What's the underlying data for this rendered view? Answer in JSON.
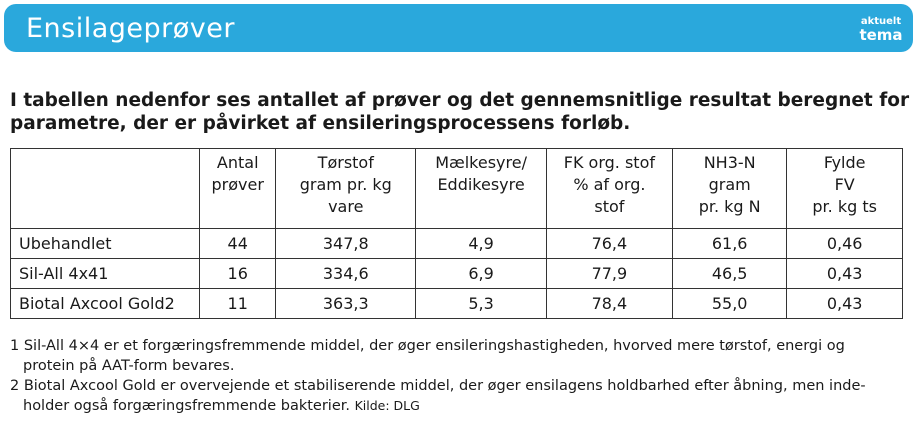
{
  "header": {
    "title": "Ensilageprøver",
    "badge_line1": "aktuelt",
    "badge_line2": "tema"
  },
  "intro": {
    "line1": "I tabellen nedenfor ses antallet af prøver og det gennemsnitlige resultat beregnet for",
    "line2": "parametre, der er påvirket af ensileringsprocessens forløb."
  },
  "table": {
    "columns": [
      {
        "lines": [
          ""
        ]
      },
      {
        "lines": [
          "Antal",
          "prøver"
        ]
      },
      {
        "lines": [
          "Tørstof",
          "gram pr. kg",
          "vare"
        ]
      },
      {
        "lines": [
          "Mælkesyre/",
          "Eddikesyre"
        ]
      },
      {
        "lines": [
          "FK org. stof",
          "% af org.",
          "stof"
        ]
      },
      {
        "lines": [
          "NH3-N",
          "gram",
          "pr. kg N"
        ]
      },
      {
        "lines": [
          "Fylde",
          "FV",
          "pr. kg ts"
        ]
      }
    ],
    "rows": [
      [
        "Ubehandlet",
        "44",
        "347,8",
        "4,9",
        "76,4",
        "61,6",
        "0,46"
      ],
      [
        "Sil-All 4x41",
        "16",
        "334,6",
        "6,9",
        "77,9",
        "46,5",
        "0,43"
      ],
      [
        "Biotal Axcool Gold2",
        "11",
        "363,3",
        "5,3",
        "78,4",
        "55,0",
        "0,43"
      ]
    ]
  },
  "footnotes": {
    "fn1_line1": "1 Sil-All 4×4 er et forgæringsfremmende middel, der øger ensileringshastigheden, hvorved mere tørstof, energi og",
    "fn1_line2": "protein på AAT-form bevares.",
    "fn2_line1": "2 Biotal Axcool Gold er overvejende et stabiliserende middel, der øger ensilagens holdbarhed efter åbning, men inde-",
    "fn2_line2": "holder også forgæringsfremmende bakterier.",
    "source": "Kilde: DLG"
  }
}
